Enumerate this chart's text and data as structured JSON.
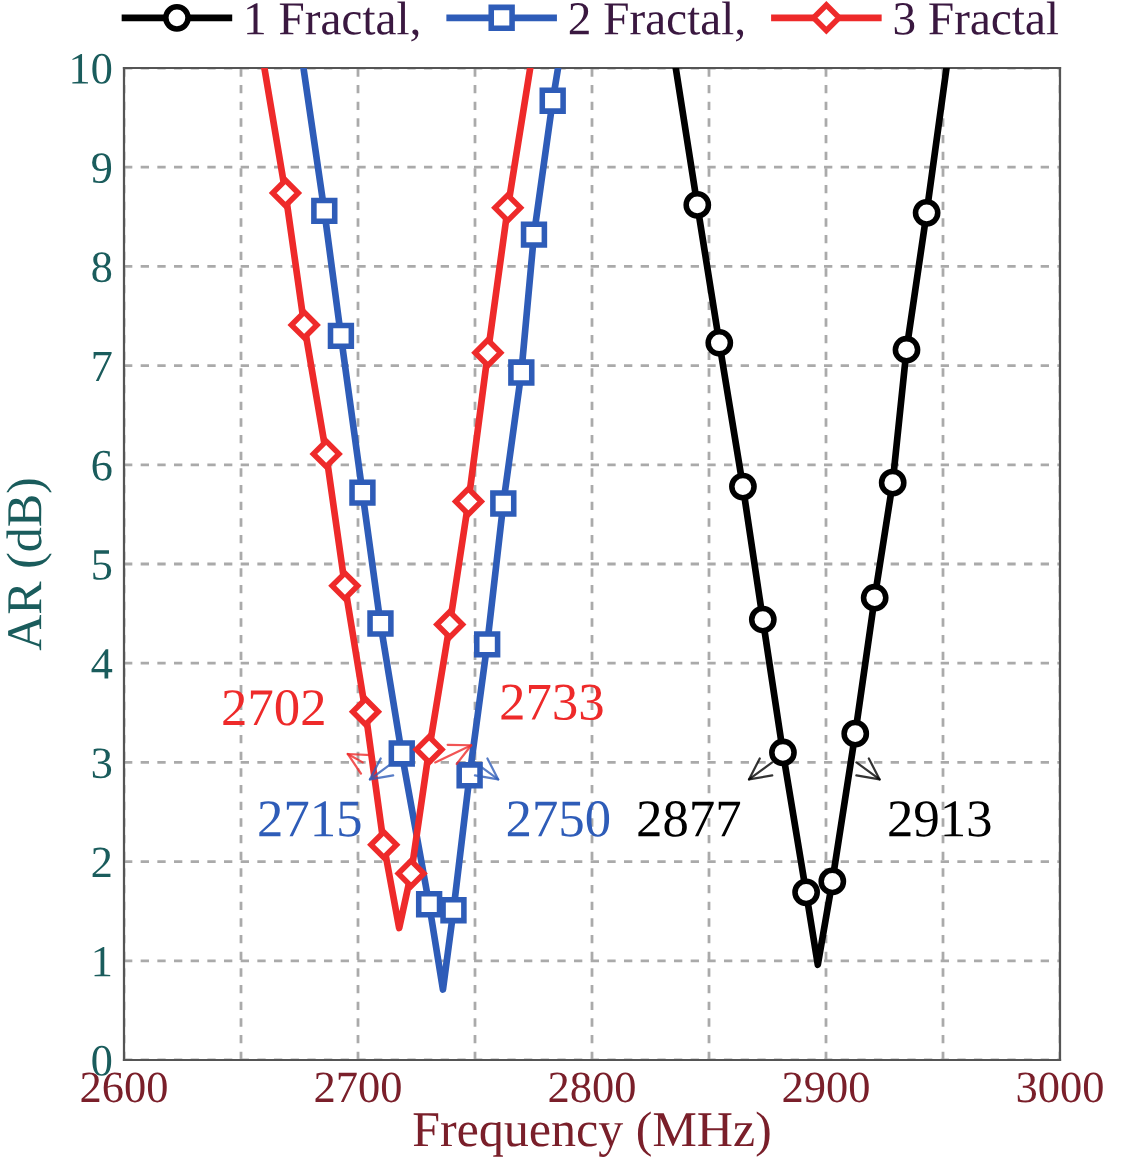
{
  "chart_data": {
    "type": "line",
    "xlabel": "Frequency (MHz)",
    "ylabel": "AR (dB)",
    "xlim": [
      2600,
      3000
    ],
    "ylim": [
      0,
      10
    ],
    "xticks": [
      2600,
      {
        "value": 2650,
        "label": null
      },
      2700,
      {
        "value": 2750,
        "label": null
      },
      2800,
      {
        "value": 2850,
        "label": null
      },
      2900,
      {
        "value": 2950,
        "label": null
      },
      3000
    ],
    "yticks": [
      0,
      1,
      2,
      3,
      4,
      5,
      6,
      7,
      8,
      9,
      10
    ],
    "grid": true,
    "legend": "top",
    "line_style": "solid",
    "series": [
      {
        "name": "1 Fractal,",
        "color": "#000000",
        "marker": "circle",
        "x": [
          2835.8,
          2845,
          2854.4,
          2864.5,
          2873,
          2881.6,
          2891.5,
          2896.5,
          2902.7,
          2912.5,
          2920.8,
          2928.5,
          2934.4,
          2943,
          2951.5
        ],
        "values": [
          10,
          8.62,
          7.23,
          5.78,
          4.44,
          3.1,
          1.69,
          0.96,
          1.8,
          3.29,
          4.66,
          5.82,
          7.16,
          8.54,
          10
        ]
      },
      {
        "name": "2 Fractal,",
        "color": "#2e5cb8",
        "marker": "square",
        "x": [
          2676.7,
          2685.6,
          2692.7,
          2701.9,
          2709.6,
          2718.7,
          2730.4,
          2736.3,
          2740.8,
          2747.7,
          2755.2,
          2762.1,
          2769.8,
          2775.2,
          2783.2,
          2785.5
        ],
        "values": [
          10,
          8.56,
          7.3,
          5.72,
          4.4,
          3.09,
          1.57,
          0.71,
          1.51,
          2.87,
          4.19,
          5.61,
          6.93,
          8.32,
          9.67,
          10
        ]
      },
      {
        "name": "3 Fractal",
        "color": "#ee2a2a",
        "marker": "diamond",
        "x": [
          2660,
          2669,
          2677,
          2686.4,
          2694.4,
          2703.2,
          2711,
          2717.6,
          2722.7,
          2730.4,
          2739.2,
          2747.2,
          2755.5,
          2764,
          2773.6
        ],
        "values": [
          10,
          8.74,
          7.41,
          6.11,
          4.78,
          3.51,
          2.17,
          1.33,
          1.88,
          3.13,
          4.39,
          5.63,
          7.13,
          8.59,
          10
        ]
      }
    ],
    "annotations": [
      {
        "text": "2702",
        "x": 2702,
        "y": 3
      },
      {
        "text": "2733",
        "x": 2733,
        "y": 3
      },
      {
        "text": "2715",
        "x": 2715,
        "y": 3
      },
      {
        "text": "2750",
        "x": 2750,
        "y": 3
      },
      {
        "text": "2877",
        "x": 2877,
        "y": 3
      },
      {
        "text": "2913",
        "x": 2913,
        "y": 3
      }
    ]
  }
}
